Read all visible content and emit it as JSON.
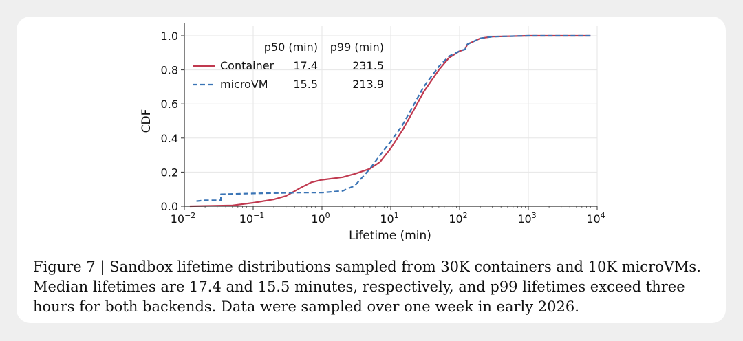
{
  "chart_data": {
    "type": "line",
    "xlabel": "Lifetime (min)",
    "ylabel": "CDF",
    "xscale": "log",
    "xlim": [
      0.01,
      10000
    ],
    "ylim": [
      0,
      1.0
    ],
    "x_ticks": [
      {
        "base": "10",
        "exp": "−2",
        "value": 0.01
      },
      {
        "base": "10",
        "exp": "−1",
        "value": 0.1
      },
      {
        "base": "10",
        "exp": "0",
        "value": 1
      },
      {
        "base": "10",
        "exp": "1",
        "value": 10
      },
      {
        "base": "10",
        "exp": "2",
        "value": 100
      },
      {
        "base": "10",
        "exp": "3",
        "value": 1000
      },
      {
        "base": "10",
        "exp": "4",
        "value": 10000
      }
    ],
    "y_ticks": [
      "0.0",
      "0.2",
      "0.4",
      "0.6",
      "0.8",
      "1.0"
    ],
    "grid": true,
    "legend": {
      "placement": "top-left",
      "col_headers": [
        "p50 (min)",
        "p99 (min)"
      ],
      "rows": [
        {
          "name": "Container",
          "p50": "17.4",
          "p99": "231.5"
        },
        {
          "name": "microVM",
          "p50": "15.5",
          "p99": "213.9"
        }
      ]
    },
    "series": [
      {
        "name": "Container",
        "color": "#c0394f",
        "style": "solid",
        "points": [
          [
            0.012,
            0.0
          ],
          [
            0.05,
            0.005
          ],
          [
            0.1,
            0.02
          ],
          [
            0.2,
            0.04
          ],
          [
            0.3,
            0.06
          ],
          [
            0.5,
            0.11
          ],
          [
            0.7,
            0.14
          ],
          [
            1,
            0.155
          ],
          [
            2,
            0.17
          ],
          [
            3,
            0.19
          ],
          [
            5,
            0.22
          ],
          [
            7,
            0.26
          ],
          [
            10,
            0.34
          ],
          [
            15,
            0.45
          ],
          [
            20,
            0.54
          ],
          [
            30,
            0.67
          ],
          [
            50,
            0.8
          ],
          [
            70,
            0.87
          ],
          [
            100,
            0.91
          ],
          [
            120,
            0.92
          ],
          [
            130,
            0.95
          ],
          [
            200,
            0.985
          ],
          [
            300,
            0.995
          ],
          [
            1000,
            1.0
          ],
          [
            8000,
            1.0
          ]
        ]
      },
      {
        "name": "microVM",
        "color": "#3a74b5",
        "style": "dashed",
        "points": [
          [
            0.015,
            0.03
          ],
          [
            0.02,
            0.035
          ],
          [
            0.034,
            0.035
          ],
          [
            0.034,
            0.07
          ],
          [
            0.1,
            0.075
          ],
          [
            0.5,
            0.08
          ],
          [
            1,
            0.08
          ],
          [
            2,
            0.09
          ],
          [
            3,
            0.12
          ],
          [
            5,
            0.22
          ],
          [
            7,
            0.3
          ],
          [
            10,
            0.38
          ],
          [
            15,
            0.48
          ],
          [
            20,
            0.57
          ],
          [
            30,
            0.7
          ],
          [
            50,
            0.82
          ],
          [
            70,
            0.88
          ],
          [
            100,
            0.91
          ],
          [
            120,
            0.92
          ],
          [
            130,
            0.95
          ],
          [
            200,
            0.985
          ],
          [
            300,
            0.995
          ],
          [
            1000,
            1.0
          ],
          [
            8000,
            1.0
          ]
        ]
      }
    ]
  },
  "caption": "Figure 7 | Sandbox lifetime distributions sampled from 30K containers and 10K microVMs. Median lifetimes are 17.4 and 15.5 minutes, respectively, and p99 lifetimes exceed three hours for both backends. Data were sampled over one week in early 2026."
}
